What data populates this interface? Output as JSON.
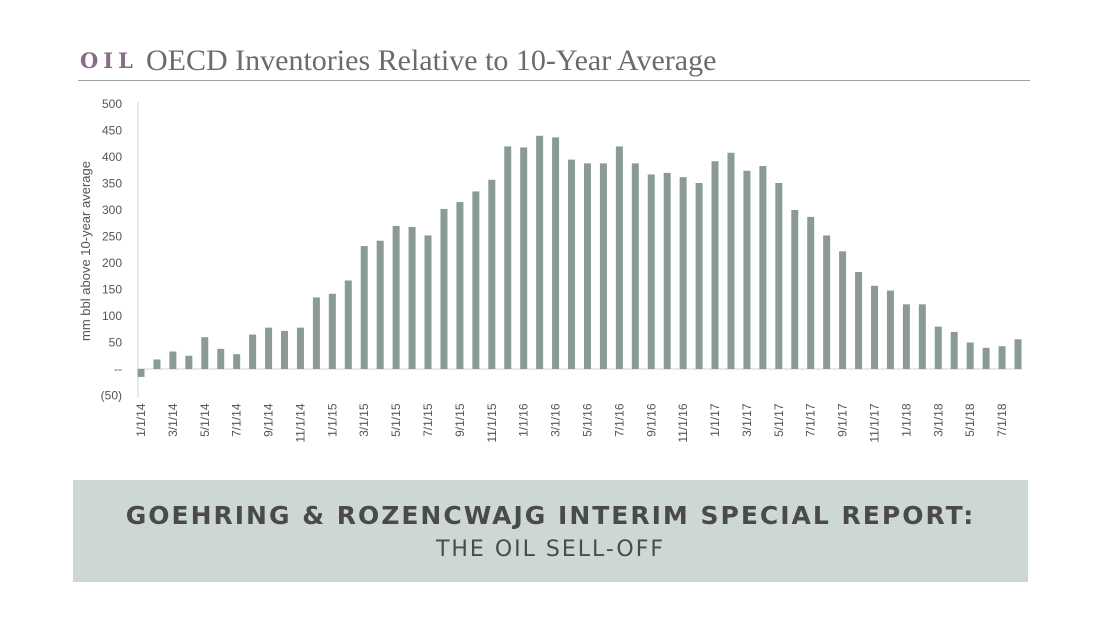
{
  "header": {
    "section_label": "OIL",
    "title": "OECD Inventories Relative to 10-Year Average"
  },
  "colors": {
    "section_label": "#8a6b88",
    "bar": "#8a9b97",
    "banner_bg": "#cdd8d5"
  },
  "banner": {
    "line1": "GOEHRING & ROZENCWAJG INTERIM SPECIAL REPORT:",
    "line2": "THE OIL SELL-OFF"
  },
  "chart_data": {
    "type": "bar",
    "ylabel": "mm bbl above 10-year average",
    "ylim": [
      -50,
      500
    ],
    "yticks": [
      -50,
      0,
      50,
      100,
      150,
      200,
      250,
      300,
      350,
      400,
      450,
      500
    ],
    "ytick_labels": [
      "(50)",
      "--",
      "50",
      "100",
      "150",
      "200",
      "250",
      "300",
      "350",
      "400",
      "450",
      "500"
    ],
    "xtick_labels": [
      "1/1/14",
      "3/1/14",
      "5/1/14",
      "7/1/14",
      "9/1/14",
      "11/1/14",
      "1/1/15",
      "3/1/15",
      "5/1/15",
      "7/1/15",
      "9/1/15",
      "11/1/15",
      "1/1/16",
      "3/1/16",
      "5/1/16",
      "7/1/16",
      "9/1/16",
      "11/1/16",
      "1/1/17",
      "3/1/17",
      "5/1/17",
      "7/1/17",
      "9/1/17",
      "11/1/17",
      "1/1/18",
      "3/1/18",
      "5/1/18",
      "7/1/18"
    ],
    "categories": [
      "1/1/14",
      "2/1/14",
      "3/1/14",
      "4/1/14",
      "5/1/14",
      "6/1/14",
      "7/1/14",
      "8/1/14",
      "9/1/14",
      "10/1/14",
      "11/1/14",
      "12/1/14",
      "1/1/15",
      "2/1/15",
      "3/1/15",
      "4/1/15",
      "5/1/15",
      "6/1/15",
      "7/1/15",
      "8/1/15",
      "9/1/15",
      "10/1/15",
      "11/1/15",
      "12/1/15",
      "1/1/16",
      "2/1/16",
      "3/1/16",
      "4/1/16",
      "5/1/16",
      "6/1/16",
      "7/1/16",
      "8/1/16",
      "9/1/16",
      "10/1/16",
      "11/1/16",
      "12/1/16",
      "1/1/17",
      "2/1/17",
      "3/1/17",
      "4/1/17",
      "5/1/17",
      "6/1/17",
      "7/1/17",
      "8/1/17",
      "9/1/17",
      "10/1/17",
      "11/1/17",
      "12/1/17",
      "1/1/18",
      "2/1/18",
      "3/1/18",
      "4/1/18",
      "5/1/18",
      "6/1/18",
      "7/1/18",
      "8/1/18"
    ],
    "values": [
      -15,
      18,
      33,
      25,
      60,
      38,
      28,
      65,
      78,
      72,
      78,
      135,
      142,
      167,
      232,
      242,
      270,
      268,
      252,
      302,
      315,
      335,
      357,
      420,
      418,
      440,
      437,
      395,
      388,
      388,
      420,
      388,
      367,
      370,
      362,
      351,
      392,
      408,
      374,
      383,
      351,
      300,
      287,
      252,
      222,
      183,
      157,
      148,
      122,
      122,
      80,
      70,
      50,
      40,
      43,
      56
    ],
    "grid": false,
    "legend": "none"
  }
}
